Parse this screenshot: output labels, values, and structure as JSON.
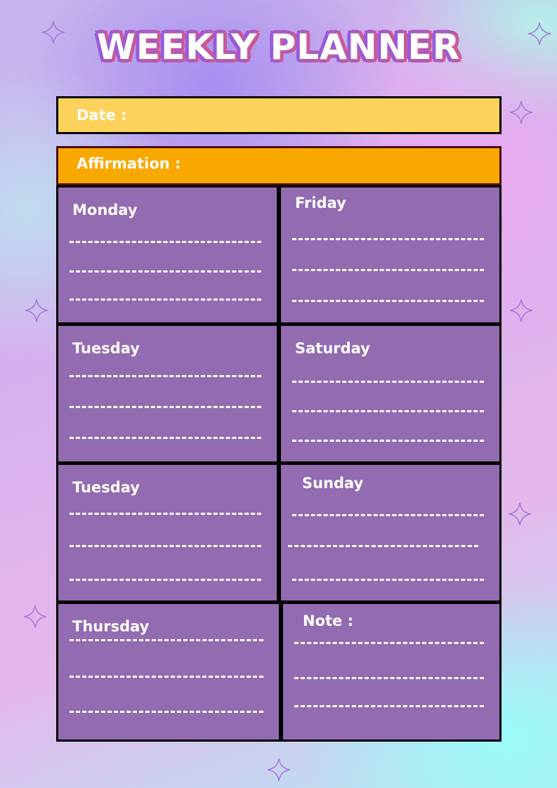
{
  "title": "WEEKLY PLANNER",
  "date_label": "Date :",
  "affirmation_label": "Affirmation :",
  "left_column": [
    {
      "label": "Monday"
    },
    {
      "label": "Tuesday"
    },
    {
      "label": "Tuesday"
    },
    {
      "label": "Thursday"
    }
  ],
  "right_column": [
    {
      "label": "Friday"
    },
    {
      "label": "Saturday"
    },
    {
      "label": "Sunday"
    },
    {
      "label": "Note :"
    }
  ],
  "colors": {
    "date_bar": "#fcd25a",
    "affirmation_bar": "#f9a800",
    "cell": "#936bb0"
  },
  "decorations": [
    "sparkle-icon"
  ]
}
